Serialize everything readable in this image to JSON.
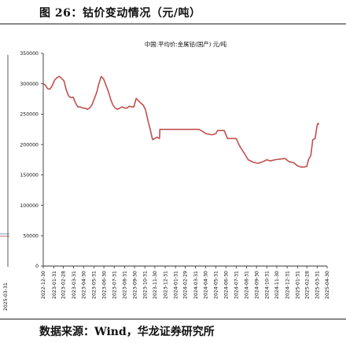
{
  "figure": {
    "title": "图 26：钴价变动情况（元/吨）",
    "source": "数据来源：Wind，华龙证券研究所"
  },
  "left_fragment_label": "2025-03-31",
  "colors": {
    "line": "#c0504d",
    "axis": "#333333"
  },
  "chart_data": {
    "type": "line",
    "title": "中国:平均价:金属钴(国产) 元/吨",
    "xlabel": "",
    "ylabel": "",
    "ylim": [
      0,
      350000
    ],
    "yticks": [
      0,
      50000,
      100000,
      150000,
      200000,
      250000,
      300000,
      350000
    ],
    "grid": false,
    "legend": "none",
    "x_tick_labels": [
      "2022-12-30",
      "2023-01-31",
      "2023-02-28",
      "2023-03-31",
      "2023-04-30",
      "2023-05-31",
      "2023-06-30",
      "2023-07-31",
      "2023-08-31",
      "2023-09-30",
      "2023-10-31",
      "2023-11-30",
      "2023-12-31",
      "2024-01-31",
      "2024-02-29",
      "2024-03-31",
      "2024-04-30",
      "2024-05-31",
      "2024-06-30",
      "2024-07-31",
      "2024-08-31",
      "2024-09-30",
      "2024-10-31",
      "2024-11-30",
      "2024-12-31",
      "2025-01-31",
      "2025-02-28",
      "2025-03-31",
      "2025-04-30"
    ],
    "series": [
      {
        "points": [
          [
            "2022-12-30",
            300000
          ],
          [
            "2023-01-05",
            298000
          ],
          [
            "2023-01-12",
            292000
          ],
          [
            "2023-01-19",
            291000
          ],
          [
            "2023-01-26",
            297000
          ],
          [
            "2023-02-02",
            306000
          ],
          [
            "2023-02-09",
            310000
          ],
          [
            "2023-02-16",
            312000
          ],
          [
            "2023-02-23",
            309000
          ],
          [
            "2023-03-02",
            305000
          ],
          [
            "2023-03-09",
            290000
          ],
          [
            "2023-03-16",
            280000
          ],
          [
            "2023-03-23",
            277000
          ],
          [
            "2023-03-30",
            278000
          ],
          [
            "2023-04-06",
            268000
          ],
          [
            "2023-04-13",
            262000
          ],
          [
            "2023-04-20",
            262000
          ],
          [
            "2023-04-27",
            260000
          ],
          [
            "2023-05-04",
            260000
          ],
          [
            "2023-05-11",
            258000
          ],
          [
            "2023-05-18",
            260000
          ],
          [
            "2023-05-25",
            265000
          ],
          [
            "2023-06-01",
            275000
          ],
          [
            "2023-06-08",
            285000
          ],
          [
            "2023-06-15",
            300000
          ],
          [
            "2023-06-22",
            312000
          ],
          [
            "2023-06-29",
            308000
          ],
          [
            "2023-07-06",
            298000
          ],
          [
            "2023-07-13",
            288000
          ],
          [
            "2023-07-20",
            275000
          ],
          [
            "2023-07-27",
            265000
          ],
          [
            "2023-08-03",
            260000
          ],
          [
            "2023-08-10",
            258000
          ],
          [
            "2023-08-17",
            260000
          ],
          [
            "2023-08-24",
            262000
          ],
          [
            "2023-08-31",
            260000
          ],
          [
            "2023-09-07",
            260000
          ],
          [
            "2023-09-14",
            263000
          ],
          [
            "2023-09-21",
            262000
          ],
          [
            "2023-09-28",
            262000
          ],
          [
            "2023-10-05",
            276000
          ],
          [
            "2023-10-12",
            272000
          ],
          [
            "2023-10-19",
            268000
          ],
          [
            "2023-10-26",
            265000
          ],
          [
            "2023-11-02",
            257000
          ],
          [
            "2023-11-09",
            240000
          ],
          [
            "2023-11-16",
            225000
          ],
          [
            "2023-11-23",
            208000
          ],
          [
            "2023-11-30",
            210000
          ],
          [
            "2023-12-07",
            212000
          ],
          [
            "2023-12-14",
            210000
          ],
          [
            "2023-12-15",
            225000
          ],
          [
            "2024-01-15",
            225000
          ],
          [
            "2024-02-15",
            225000
          ],
          [
            "2024-03-15",
            225000
          ],
          [
            "2024-04-10",
            225000
          ],
          [
            "2024-04-20",
            222000
          ],
          [
            "2024-05-01",
            218000
          ],
          [
            "2024-05-20",
            216000
          ],
          [
            "2024-05-31",
            218000
          ],
          [
            "2024-06-05",
            223000
          ],
          [
            "2024-06-25",
            223000
          ],
          [
            "2024-07-05",
            210000
          ],
          [
            "2024-07-31",
            210000
          ],
          [
            "2024-08-10",
            198000
          ],
          [
            "2024-08-25",
            185000
          ],
          [
            "2024-09-05",
            175000
          ],
          [
            "2024-09-20",
            171000
          ],
          [
            "2024-10-05",
            169000
          ],
          [
            "2024-10-20",
            172000
          ],
          [
            "2024-10-31",
            175000
          ],
          [
            "2024-11-10",
            173000
          ],
          [
            "2024-11-25",
            175000
          ],
          [
            "2024-12-10",
            176000
          ],
          [
            "2024-12-25",
            177000
          ],
          [
            "2025-01-05",
            172000
          ],
          [
            "2025-01-20",
            170000
          ],
          [
            "2025-01-31",
            165000
          ],
          [
            "2025-02-10",
            163000
          ],
          [
            "2025-02-20",
            163000
          ],
          [
            "2025-02-28",
            164000
          ],
          [
            "2025-03-05",
            175000
          ],
          [
            "2025-03-12",
            182000
          ],
          [
            "2025-03-18",
            208000
          ],
          [
            "2025-03-25",
            210000
          ],
          [
            "2025-03-31",
            232000
          ],
          [
            "2025-04-03",
            235000
          ],
          [
            "2025-04-05",
            233000
          ]
        ]
      }
    ]
  }
}
